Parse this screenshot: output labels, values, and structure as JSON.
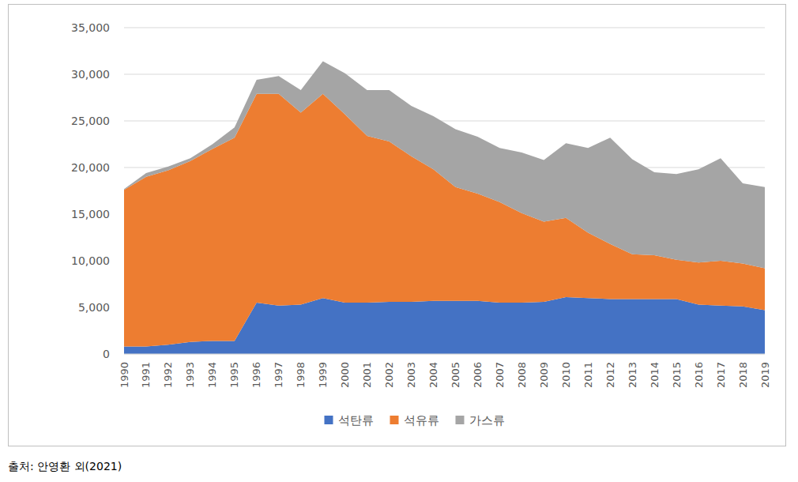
{
  "chart_data": {
    "type": "area",
    "stacked": true,
    "grid": true,
    "legend": "bottom",
    "annotations": [
      "출처: 안영환 외(2021)"
    ],
    "categories": [
      "1990",
      "1991",
      "1992",
      "1993",
      "1994",
      "1995",
      "1996",
      "1997",
      "1998",
      "1999",
      "2000",
      "2001",
      "2002",
      "2003",
      "2004",
      "2005",
      "2006",
      "2007",
      "2008",
      "2009",
      "2010",
      "2011",
      "2012",
      "2013",
      "2014",
      "2015",
      "2016",
      "2017",
      "2018",
      "2019"
    ],
    "series": [
      {
        "name": "석탄류",
        "color": "#4472c4",
        "values": [
          800,
          800,
          1000,
          1300,
          1400,
          1400,
          5500,
          5200,
          5300,
          6000,
          5500,
          5500,
          5600,
          5600,
          5700,
          5700,
          5700,
          5500,
          5500,
          5600,
          6100,
          6000,
          5900,
          5900,
          5900,
          5900,
          5300,
          5200,
          5100,
          4700
        ]
      },
      {
        "name": "석유류",
        "color": "#ed7d31",
        "values": [
          16800,
          18200,
          18700,
          19400,
          20600,
          21800,
          22400,
          22700,
          20600,
          21900,
          20200,
          17900,
          17200,
          15600,
          14100,
          12200,
          11500,
          10800,
          9600,
          8600,
          8500,
          7000,
          5900,
          4800,
          4700,
          4200,
          4500,
          4800,
          4600,
          4500
        ]
      },
      {
        "name": "가스류",
        "color": "#a5a5a5",
        "values": [
          100,
          400,
          400,
          300,
          500,
          1100,
          1500,
          1900,
          2400,
          3500,
          4400,
          4900,
          5500,
          5400,
          5700,
          6200,
          6100,
          5800,
          6500,
          6600,
          8000,
          9100,
          11400,
          10200,
          8900,
          9200,
          10000,
          11000,
          8600,
          8700
        ]
      }
    ],
    "ylim": [
      0,
      35000
    ],
    "yticks": [
      0,
      {
        "value": 5000,
        "label": "5,000"
      },
      {
        "value": 10000,
        "label": "10,000"
      },
      {
        "value": 15000,
        "label": "15,000"
      },
      {
        "value": 20000,
        "label": "20,000"
      },
      {
        "value": 25000,
        "label": "25,000"
      },
      {
        "value": 30000,
        "label": "30,000"
      },
      {
        "value": 35000,
        "label": "35,000"
      }
    ]
  }
}
